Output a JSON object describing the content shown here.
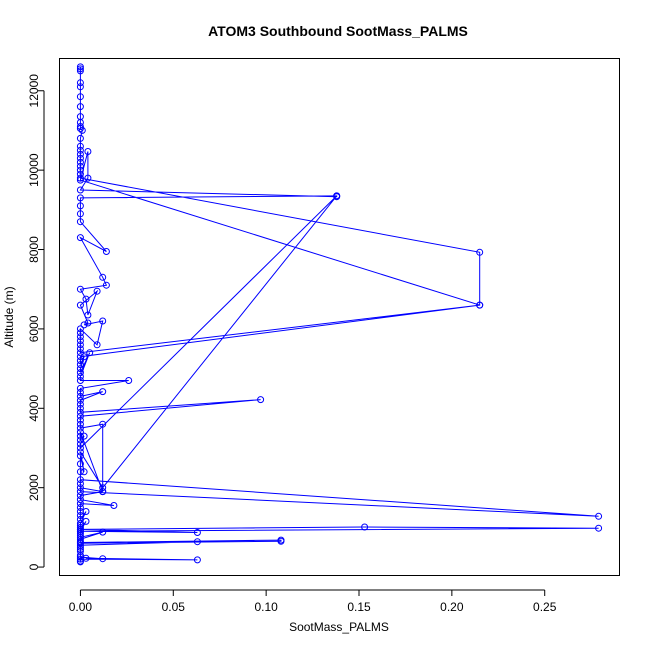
{
  "chart_data": {
    "type": "line",
    "title": "ATOM3 Southbound SootMass_PALMS",
    "xlabel": "SootMass_PALMS",
    "ylabel": "Altitude (m)",
    "xlim": [
      -0.011,
      0.29
    ],
    "ylim": [
      -200,
      12800
    ],
    "xticks": [
      0.0,
      0.05,
      0.1,
      0.15,
      0.2,
      0.25
    ],
    "xtick_labels": [
      "0.00",
      "0.05",
      "0.10",
      "0.15",
      "0.20",
      "0.25"
    ],
    "yticks": [
      0,
      2000,
      4000,
      6000,
      8000,
      10000,
      12000
    ],
    "ytick_labels": [
      "0",
      "2000",
      "4000",
      "6000",
      "8000",
      "10000",
      "12000"
    ],
    "grid": false,
    "series": [
      {
        "color": "#0000ff",
        "marker": "open-circle",
        "x": [
          0.0,
          0.0,
          0.0,
          0.0,
          0.0,
          0.0,
          0.0,
          0.0,
          0.0,
          0.0,
          0.0,
          0.001,
          0.0,
          0.0,
          0.0,
          0.0,
          0.0,
          0.0,
          0.0,
          0.0,
          0.0,
          0.0,
          0.215,
          0.215,
          0.0,
          0.004,
          0.004,
          0.0,
          0.138,
          0.138,
          0.0,
          0.0,
          0.0,
          0.0,
          0.014,
          0.0,
          0.012,
          0.014,
          0.0,
          0.003,
          0.004,
          0.009,
          0.0,
          0.004,
          0.002,
          0.012,
          0.009,
          0.0,
          0.0,
          0.0,
          0.0,
          0.0,
          0.0,
          0.0,
          0.215,
          0.0,
          0.0,
          0.0,
          0.002,
          0.0,
          0.0,
          0.005,
          0.0,
          0.0,
          0.026,
          0.0,
          0.0,
          0.0,
          0.012,
          0.0,
          0.0,
          0.0,
          0.0,
          0.097,
          0.0,
          0.0,
          0.0,
          0.0,
          0.012,
          0.012,
          0.0,
          0.0,
          0.0,
          0.002,
          0.0,
          0.0,
          0.138,
          0.012,
          0.0,
          0.002,
          0.0,
          0.0,
          0.0,
          0.0,
          0.279,
          0.0,
          0.0,
          0.0,
          0.012,
          0.0,
          0.0,
          0.018,
          0.0,
          0.0,
          0.0,
          0.0,
          0.0,
          0.003,
          0.0,
          0.0,
          0.0,
          0.0,
          0.063,
          0.0,
          0.003,
          0.0,
          0.153,
          0.279,
          0.0,
          0.0,
          0.0,
          0.0,
          0.012,
          0.0,
          0.0,
          0.0,
          0.108,
          0.108,
          0.0,
          0.063,
          0.0,
          0.0,
          0.0,
          0.0,
          0.0,
          0.0,
          0.012,
          0.003,
          0.063,
          0.0,
          0.0,
          0.0
        ],
        "y": [
          12600,
          12550,
          12500,
          12200,
          12100,
          11850,
          11600,
          11350,
          11200,
          11100,
          11050,
          11000,
          10800,
          10600,
          10500,
          10400,
          10300,
          10200,
          10100,
          10000,
          9900,
          9800,
          7930,
          6600,
          9750,
          10470,
          9800,
          9500,
          9330,
          9350,
          9300,
          9100,
          8900,
          8700,
          7950,
          8300,
          7300,
          7100,
          7000,
          6750,
          6350,
          6950,
          6600,
          6150,
          6100,
          6200,
          5600,
          6000,
          5900,
          5800,
          5700,
          5600,
          5500,
          5400,
          6600,
          5300,
          5200,
          5100,
          5300,
          5000,
          4900,
          5400,
          4800,
          4700,
          4700,
          4500,
          4400,
          4300,
          4420,
          4200,
          4100,
          4000,
          3900,
          4220,
          3800,
          3700,
          3600,
          3500,
          3600,
          1900,
          3400,
          3300,
          3200,
          3300,
          3100,
          3000,
          9350,
          2000,
          2900,
          2400,
          2800,
          2600,
          2400,
          1900,
          1280,
          2200,
          2100,
          2000,
          1900,
          1800,
          1700,
          1550,
          1600,
          1500,
          1400,
          1300,
          1200,
          1400,
          1100,
          1050,
          1000,
          950,
          870,
          900,
          1150,
          950,
          1010,
          980,
          900,
          850,
          800,
          750,
          880,
          700,
          650,
          620,
          680,
          650,
          600,
          640,
          550,
          500,
          450,
          400,
          300,
          250,
          210,
          220,
          180,
          200,
          150,
          130
        ]
      }
    ]
  }
}
